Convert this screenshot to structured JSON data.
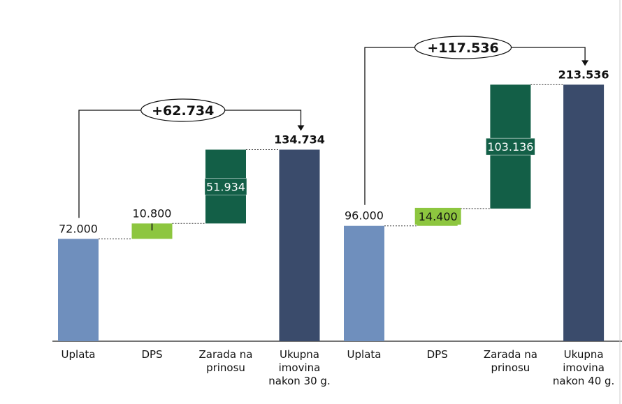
{
  "chart_data": [
    {
      "type": "waterfall",
      "categories": [
        "Uplata",
        "DPS",
        "Zarada na prinosu",
        "Ukupna imovina nakon 30 g."
      ],
      "category_lines": [
        [
          "Uplata"
        ],
        [
          "DPS"
        ],
        [
          "Zarada na",
          "prinosu"
        ],
        [
          "Ukupna",
          "imovina",
          "nakon 30 g."
        ]
      ],
      "values": [
        72000,
        10800,
        51934,
        134734
      ],
      "value_labels": [
        "72.000",
        "10.800",
        "51.934",
        "134.734"
      ],
      "kinds": [
        "start",
        "delta",
        "delta",
        "total"
      ],
      "difference_label": "+62.734",
      "ylim": [
        0,
        240000
      ],
      "grid": false
    },
    {
      "type": "waterfall",
      "categories": [
        "Uplata",
        "DPS",
        "Zarada na prinosu",
        "Ukupna imovina nakon 40 g."
      ],
      "category_lines": [
        [
          "Uplata"
        ],
        [
          "DPS"
        ],
        [
          "Zarada na",
          "prinosu"
        ],
        [
          "Ukupna",
          "imovina",
          "nakon 40 g."
        ]
      ],
      "values": [
        96000,
        14400,
        103136,
        213536
      ],
      "value_labels": [
        "96.000",
        "14.400",
        "103.136",
        "213.536"
      ],
      "kinds": [
        "start",
        "delta",
        "delta",
        "total"
      ],
      "difference_label": "+117.536",
      "ylim": [
        0,
        284000
      ],
      "grid": false
    }
  ],
  "colors": {
    "Uplata": "#6f8fbd",
    "DPS": "#8dc63f",
    "Zarada na prinosu": "#135f47",
    "Ukupna imovina": "#3a4b6b"
  }
}
